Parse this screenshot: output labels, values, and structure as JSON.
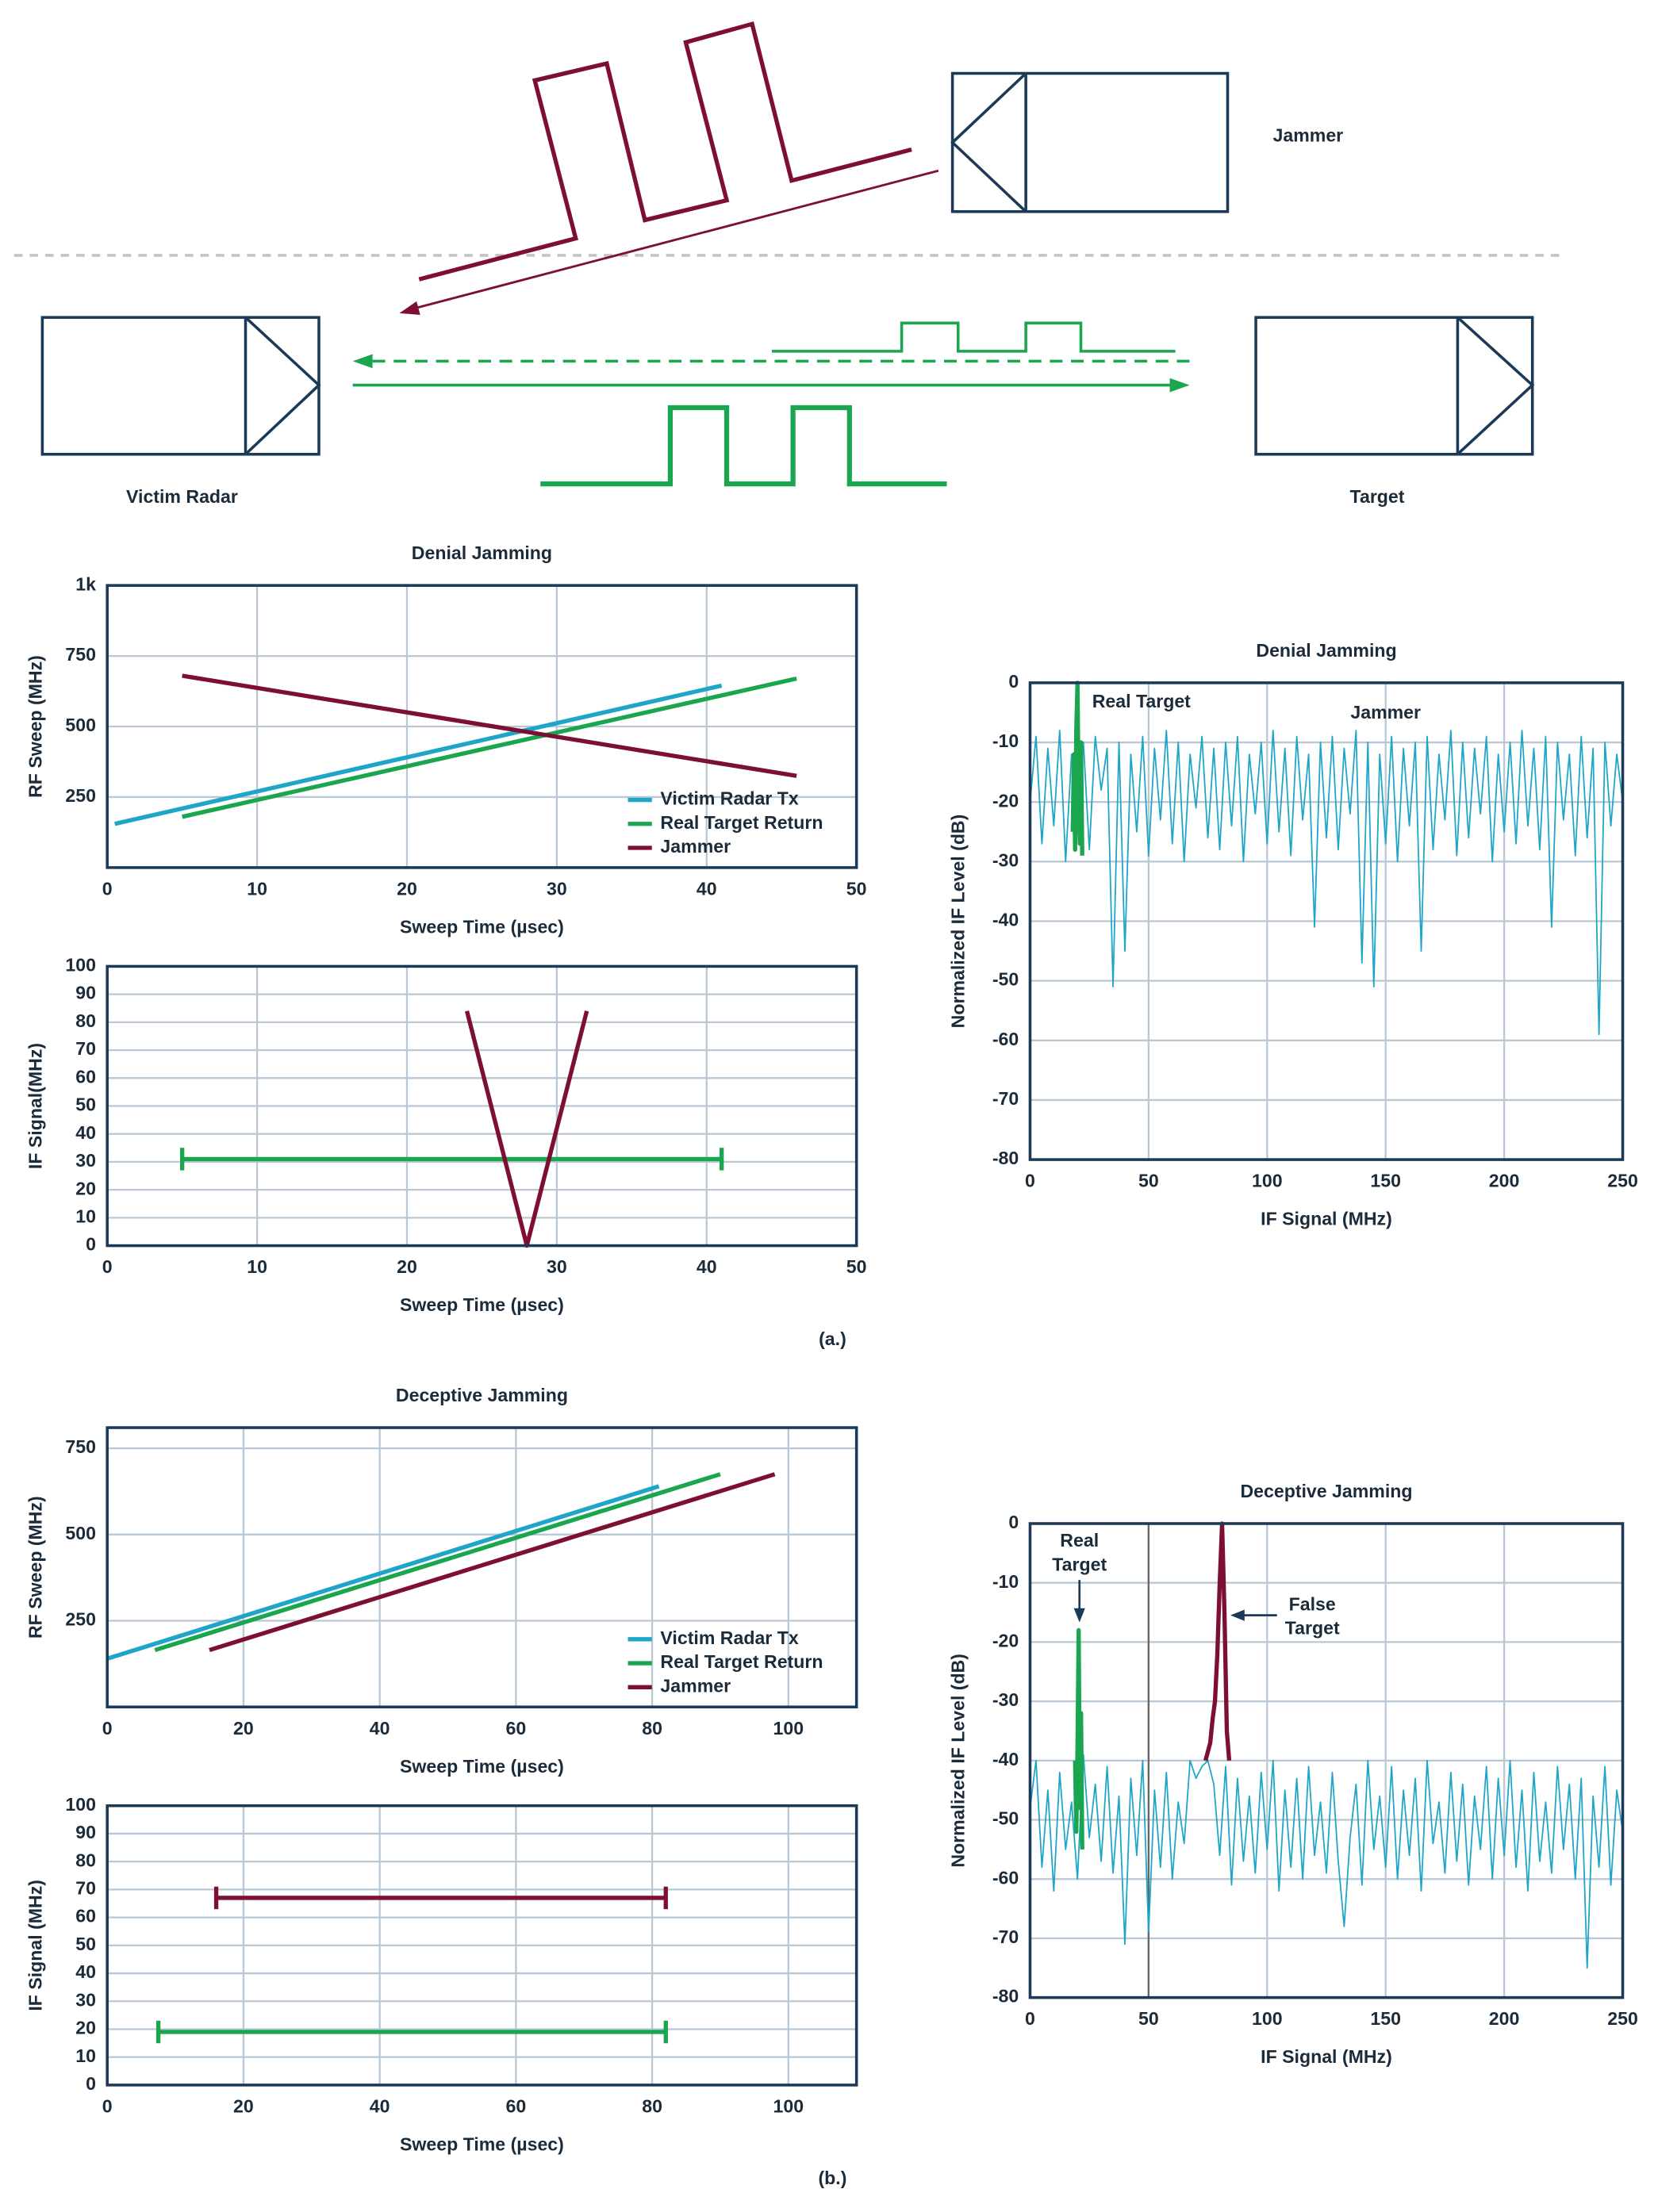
{
  "diagram": {
    "jammer_label": "Jammer",
    "victim_label": "Victim Radar",
    "target_label": "Target"
  },
  "panel_labels": [
    "(a.)",
    "(b.)"
  ],
  "chart_data": [
    {
      "type": "line",
      "title": "Denial Jamming",
      "xlabel": "Sweep Time (µsec)",
      "ylabel": "RF Sweep (MHz)",
      "xlim": [
        0,
        50
      ],
      "ylim": [
        0,
        1000
      ],
      "xticks": [
        0,
        10,
        20,
        30,
        40,
        50
      ],
      "yticks": [
        250,
        500,
        750,
        {
          "value": 1000,
          "label": "1k"
        }
      ],
      "grid": true,
      "legend": "lower right",
      "series": [
        {
          "name": "Victim Radar Tx",
          "color": "#1ea5c8",
          "x": [
            0.5,
            41
          ],
          "values": [
            155,
            645
          ]
        },
        {
          "name": "Real Target Return",
          "color": "#1aa54f",
          "x": [
            5,
            46
          ],
          "values": [
            180,
            670
          ]
        },
        {
          "name": "Jammer",
          "color": "#7d0f33",
          "x": [
            5,
            46
          ],
          "values": [
            680,
            325
          ]
        }
      ]
    },
    {
      "type": "line",
      "xlabel": "Sweep Time (µsec)",
      "ylabel": "IF Signal(MHz)",
      "xlim": [
        0,
        50
      ],
      "ylim": [
        0,
        100
      ],
      "xticks": [
        0,
        10,
        20,
        30,
        40,
        50
      ],
      "yticks": [
        0,
        10,
        20,
        30,
        40,
        50,
        60,
        70,
        80,
        90,
        100
      ],
      "grid": true,
      "series": [
        {
          "color": "#1aa54f",
          "x": [
            5,
            41
          ],
          "values": [
            31,
            31
          ],
          "end_caps": true
        },
        {
          "color": "#7d0f33",
          "x": [
            24,
            28,
            32
          ],
          "values": [
            84,
            0,
            84
          ]
        }
      ]
    },
    {
      "type": "line",
      "title": "Denial Jamming",
      "xlabel": "IF Signal (MHz)",
      "ylabel": "Normalized IF Level (dB)",
      "xlim": [
        0,
        250
      ],
      "ylim": [
        -80,
        0
      ],
      "xticks": [
        0,
        50,
        100,
        150,
        200,
        250
      ],
      "yticks": [
        -80,
        -70,
        -60,
        -50,
        -40,
        -30,
        -20,
        -10,
        0
      ],
      "grid": true,
      "annotations": [
        [
          "Real Target"
        ],
        [
          "Jammer"
        ]
      ],
      "series": [
        {
          "color": "#1ea5c8",
          "x": [
            0,
            2.5,
            5,
            7.5,
            10,
            12.5,
            15,
            17.5,
            20,
            22.5,
            25,
            27.5,
            30,
            32.5,
            35,
            37.5,
            40,
            42.5,
            45,
            47.5,
            50,
            52.5,
            55,
            57.5,
            60,
            62.5,
            65,
            67.5,
            70,
            72.5,
            75,
            77.5,
            80,
            82.5,
            85,
            87.5,
            90,
            92.5,
            95,
            97.5,
            100,
            102.5,
            105,
            107.5,
            110,
            112.5,
            115,
            117.5,
            120,
            122.5,
            125,
            127.5,
            130,
            132.5,
            135,
            137.5,
            140,
            142.5,
            145,
            147.5,
            150,
            152.5,
            155,
            157.5,
            160,
            162.5,
            165,
            167.5,
            170,
            172.5,
            175,
            177.5,
            180,
            182.5,
            185,
            187.5,
            190,
            192.5,
            195,
            197.5,
            200,
            202.5,
            205,
            207.5,
            210,
            212.5,
            215,
            217.5,
            220,
            222.5,
            225,
            227.5,
            230,
            232.5,
            235,
            237.5,
            240,
            242.5,
            245,
            247.5,
            250
          ],
          "values": [
            -20,
            -9,
            -27,
            -11,
            -24,
            -8,
            -30,
            -12,
            -22,
            -10,
            -28,
            -9,
            -18,
            -11,
            -51,
            -10,
            -45,
            -12,
            -25,
            -9,
            -29,
            -11,
            -23,
            -8,
            -27,
            -10,
            -30,
            -12,
            -21,
            -9,
            -26,
            -11,
            -28,
            -10,
            -24,
            -9,
            -30,
            -12,
            -22,
            -10,
            -27,
            -8,
            -25,
            -11,
            -29,
            -9,
            -23,
            -12,
            -41,
            -10,
            -26,
            -9,
            -28,
            -11,
            -22,
            -8,
            -47,
            -10,
            -51,
            -12,
            -27,
            -9,
            -30,
            -11,
            -24,
            -10,
            -45,
            -9,
            -28,
            -12,
            -23,
            -8,
            -29,
            -10,
            -26,
            -11,
            -22,
            -9,
            -30,
            -12,
            -25,
            -10,
            -27,
            -8,
            -24,
            -11,
            -28,
            -9,
            -41,
            -10,
            -23,
            -12,
            -29,
            -9,
            -26,
            -11,
            -59,
            -10,
            -24,
            -12,
            -20
          ]
        },
        {
          "color": "#1aa54f",
          "x": [
            18,
            18.5,
            19,
            19.5,
            20,
            20.5,
            21,
            21.5,
            22
          ],
          "values": [
            -25,
            -12,
            -28,
            -8,
            0,
            -20,
            -27,
            -10,
            -29
          ]
        }
      ]
    },
    {
      "type": "line",
      "title": "Deceptive Jamming",
      "xlabel": "Sweep Time (µsec)",
      "ylabel": "RF Sweep (MHz)",
      "xlim": [
        0,
        110
      ],
      "ylim": [
        0,
        810
      ],
      "xticks": [
        0,
        20,
        40,
        60,
        80,
        100
      ],
      "yticks": [
        250,
        500,
        750
      ],
      "grid": true,
      "legend": "lower right",
      "series": [
        {
          "name": "Victim Radar Tx",
          "color": "#1ea5c8",
          "x": [
            0,
            81
          ],
          "values": [
            140,
            640
          ]
        },
        {
          "name": "Real Target Return",
          "color": "#1aa54f",
          "x": [
            7,
            90
          ],
          "values": [
            165,
            675
          ]
        },
        {
          "name": "Jammer",
          "color": "#7d0f33",
          "x": [
            15,
            98
          ],
          "values": [
            165,
            675
          ]
        }
      ]
    },
    {
      "type": "line",
      "xlabel": "Sweep Time (µsec)",
      "ylabel": "IF Signal (MHz)",
      "xlim": [
        0,
        110
      ],
      "ylim": [
        0,
        100
      ],
      "xticks": [
        0,
        20,
        40,
        60,
        80,
        100
      ],
      "yticks": [
        0,
        10,
        20,
        30,
        40,
        50,
        60,
        70,
        80,
        90,
        100
      ],
      "grid": true,
      "series": [
        {
          "color": "#7d0f33",
          "x": [
            16,
            82
          ],
          "values": [
            67,
            67
          ],
          "end_caps": true
        },
        {
          "color": "#1aa54f",
          "x": [
            7.5,
            82
          ],
          "values": [
            19,
            19
          ],
          "end_caps": true
        }
      ]
    },
    {
      "type": "line",
      "title": "Deceptive Jamming",
      "xlabel": "IF Signal (MHz)",
      "ylabel": "Normalized IF Level (dB)",
      "xlim": [
        0,
        250
      ],
      "ylim": [
        -80,
        0
      ],
      "xticks": [
        0,
        50,
        100,
        150,
        200,
        250
      ],
      "yticks": [
        -80,
        -70,
        -60,
        -50,
        -40,
        -30,
        -20,
        -10,
        0
      ],
      "grid": true,
      "vline": 50,
      "annotations": [
        [
          "Real",
          "Target"
        ],
        [
          "False",
          "Target"
        ]
      ],
      "series": [
        {
          "color": "#1ea5c8",
          "x": [
            0,
            2.5,
            5,
            7.5,
            10,
            12.5,
            15,
            17.5,
            20,
            22.5,
            25,
            27.5,
            30,
            32.5,
            35,
            37.5,
            40,
            42.5,
            45,
            47.5,
            50,
            52.5,
            55,
            57.5,
            60,
            62.5,
            65,
            67.5,
            70,
            72.5,
            75,
            77.5,
            80,
            82.5,
            85,
            87.5,
            90,
            92.5,
            95,
            97.5,
            100,
            102.5,
            105,
            107.5,
            110,
            112.5,
            115,
            117.5,
            120,
            122.5,
            125,
            127.5,
            130,
            132.5,
            135,
            137.5,
            140,
            142.5,
            145,
            147.5,
            150,
            152.5,
            155,
            157.5,
            160,
            162.5,
            165,
            167.5,
            170,
            172.5,
            175,
            177.5,
            180,
            182.5,
            185,
            187.5,
            190,
            192.5,
            195,
            197.5,
            200,
            202.5,
            205,
            207.5,
            210,
            212.5,
            215,
            217.5,
            220,
            222.5,
            225,
            227.5,
            230,
            232.5,
            235,
            237.5,
            240,
            242.5,
            245,
            247.5,
            250
          ],
          "values": [
            -48,
            -40,
            -58,
            -45,
            -62,
            -42,
            -55,
            -47,
            -60,
            -39,
            -53,
            -44,
            -57,
            -41,
            -59,
            -46,
            -71,
            -43,
            -56,
            -40,
            -69,
            -45,
            -58,
            -42,
            -60,
            -47,
            -54,
            -40,
            -43,
            -41,
            -40,
            -44,
            -56,
            -41,
            -61,
            -43,
            -57,
            -46,
            -59,
            -42,
            -55,
            -40,
            -62,
            -45,
            -58,
            -43,
            -60,
            -41,
            -56,
            -47,
            -59,
            -42,
            -57,
            -68,
            -53,
            -44,
            -61,
            -40,
            -55,
            -46,
            -58,
            -41,
            -60,
            -45,
            -56,
            -43,
            -62,
            -40,
            -54,
            -47,
            -59,
            -42,
            -57,
            -44,
            -61,
            -46,
            -55,
            -41,
            -60,
            -43,
            -56,
            -40,
            -58,
            -45,
            -62,
            -42,
            -57,
            -47,
            -59,
            -41,
            -55,
            -44,
            -60,
            -43,
            -75,
            -46,
            -58,
            -41,
            -61,
            -45,
            -52
          ]
        },
        {
          "color": "#1aa54f",
          "x": [
            19,
            19.5,
            20,
            20.5,
            21,
            21.5,
            22
          ],
          "values": [
            -40,
            -52,
            -38,
            -18,
            -48,
            -32,
            -55
          ]
        },
        {
          "color": "#7d0f33",
          "x": [
            74,
            76,
            77,
            78,
            79,
            80,
            81,
            82,
            83,
            84
          ],
          "values": [
            -40,
            -37,
            -33,
            -30,
            -22,
            -10,
            0,
            -15,
            -35,
            -40
          ]
        }
      ]
    }
  ]
}
